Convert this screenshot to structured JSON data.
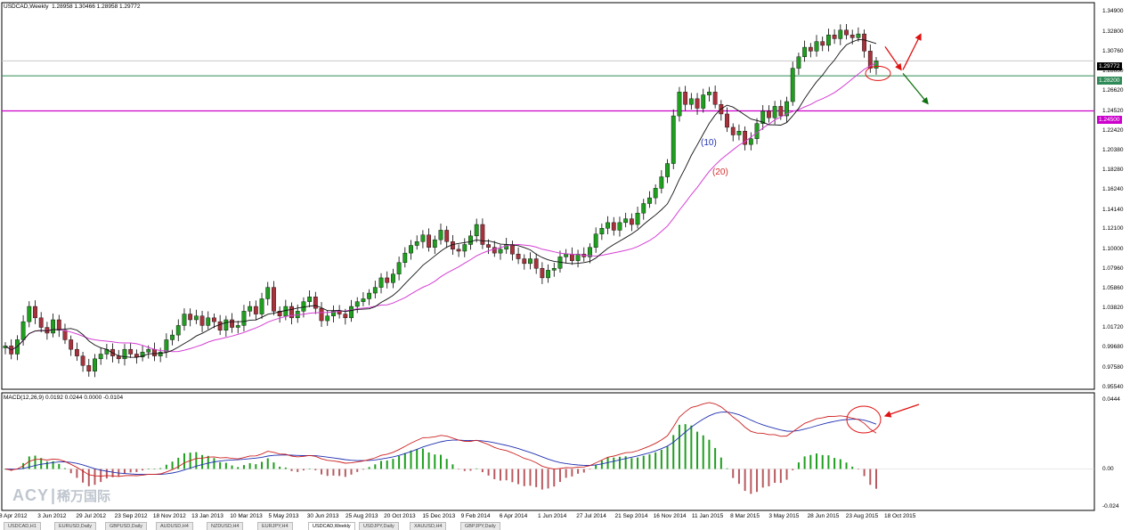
{
  "header": {
    "symbol_tf": "USDCAD,Weekly",
    "ohlc": "1.28958 1.30466 1.28958 1.29772"
  },
  "macd_header": "MACD(12,26,9) 0.0192 0.0244 0.0000 -0.0104",
  "watermark": {
    "brand": "ACY",
    "cn": "稀万国际"
  },
  "annotations": {
    "ma_fast_label": "(10)",
    "ma_slow_label": "(20)"
  },
  "colors": {
    "bull": "#1f9e1f",
    "bear": "#a8323c",
    "ma_fast": "#111111",
    "ma_slow": "#d43fd4",
    "support_green": "#2e8b57",
    "support_magenta": "#cc00cc",
    "arrow_red": "#e01010",
    "arrow_green": "#107010",
    "macd_pos": "#1f9e1f",
    "macd_neg": "#b85a60",
    "macd_line": "#cc2020",
    "signal_line": "#2030b0"
  },
  "price_tags": {
    "last": "1.29772",
    "green_level": "1.28200",
    "magenta_level": "1.24500"
  },
  "tabs": [
    "USDCAD,H1",
    "EURUSD,Daily",
    "GBPUSD,Daily",
    "AUDUSD,H4",
    "NZDUSD,H4",
    "EURJPY,H4",
    "USDCAD,Weekly",
    "USDJPY,Daily",
    "XAUUSD,H4",
    "GBPJPY,Daily"
  ],
  "active_tab": 6,
  "chart_data": [
    {
      "type": "candlestick",
      "title": "USDCAD,Weekly",
      "y_ticks": [
        "1.34900",
        "1.32800",
        "1.30760",
        "1.28660",
        "1.26620",
        "1.24520",
        "1.22420",
        "1.20380",
        "1.18280",
        "1.16240",
        "1.14140",
        "1.12100",
        "1.10000",
        "1.07960",
        "1.05860",
        "1.03820",
        "1.01720",
        "0.99680",
        "0.97580",
        "0.95540"
      ],
      "ylim": [
        0.954,
        1.356
      ],
      "x_ticks": [
        "8 Apr 2012",
        "3 Jun 2012",
        "29 Jul 2012",
        "23 Sep 2012",
        "18 Nov 2012",
        "13 Jan 2013",
        "10 Mar 2013",
        "5 May 2013",
        "30 Jun 2013",
        "25 Aug 2013",
        "20 Oct 2013",
        "15 Dec 2013",
        "9 Feb 2014",
        "6 Apr 2014",
        "1 Jun 2014",
        "27 Jul 2014",
        "21 Sep 2014",
        "16 Nov 2014",
        "11 Jan 2015",
        "8 Mar 2015",
        "3 May 2015",
        "28 Jun 2015",
        "23 Aug 2015",
        "18 Oct 2015"
      ],
      "closes": [
        0.9985,
        0.99,
        1.005,
        1.024,
        1.04,
        1.028,
        1.018,
        1.012,
        1.026,
        1.015,
        1.005,
        0.995,
        0.988,
        0.978,
        0.972,
        0.985,
        0.99,
        0.995,
        0.988,
        0.985,
        0.995,
        0.99,
        0.987,
        0.992,
        0.995,
        0.988,
        0.992,
        1.005,
        1.01,
        1.02,
        1.032,
        1.026,
        1.03,
        1.02,
        1.028,
        1.024,
        1.015,
        1.026,
        1.018,
        1.02,
        1.035,
        1.04,
        1.032,
        1.048,
        1.06,
        1.035,
        1.03,
        1.04,
        1.028,
        1.035,
        1.045,
        1.05,
        1.038,
        1.025,
        1.03,
        1.035,
        1.032,
        1.028,
        1.04,
        1.045,
        1.048,
        1.054,
        1.06,
        1.07,
        1.065,
        1.074,
        1.086,
        1.096,
        1.104,
        1.108,
        1.115,
        1.102,
        1.11,
        1.12,
        1.108,
        1.1,
        1.098,
        1.105,
        1.114,
        1.126,
        1.105,
        1.102,
        1.096,
        1.1,
        1.105,
        1.095,
        1.09,
        1.085,
        1.09,
        1.08,
        1.07,
        1.078,
        1.08,
        1.092,
        1.095,
        1.088,
        1.095,
        1.092,
        1.102,
        1.116,
        1.122,
        1.128,
        1.12,
        1.128,
        1.132,
        1.126,
        1.138,
        1.148,
        1.154,
        1.164,
        1.176,
        1.19,
        1.24,
        1.265,
        1.252,
        1.258,
        1.248,
        1.262,
        1.265,
        1.252,
        1.242,
        1.228,
        1.22,
        1.224,
        1.21,
        1.216,
        1.232,
        1.245,
        1.238,
        1.25,
        1.24,
        1.255,
        1.29,
        1.302,
        1.312,
        1.308,
        1.318,
        1.314,
        1.325,
        1.321,
        1.33,
        1.325,
        1.322,
        1.326,
        1.308,
        1.29,
        1.2977
      ],
      "sma_fast_period": 10,
      "sma_slow_period": 20,
      "levels": [
        1.282,
        1.2452
      ],
      "macd": {
        "name": "MACD(12,26,9)",
        "y_ticks": [
          "0.0444",
          "0.00",
          "-0.024"
        ],
        "ylim": [
          -0.026,
          0.046
        ]
      }
    }
  ]
}
